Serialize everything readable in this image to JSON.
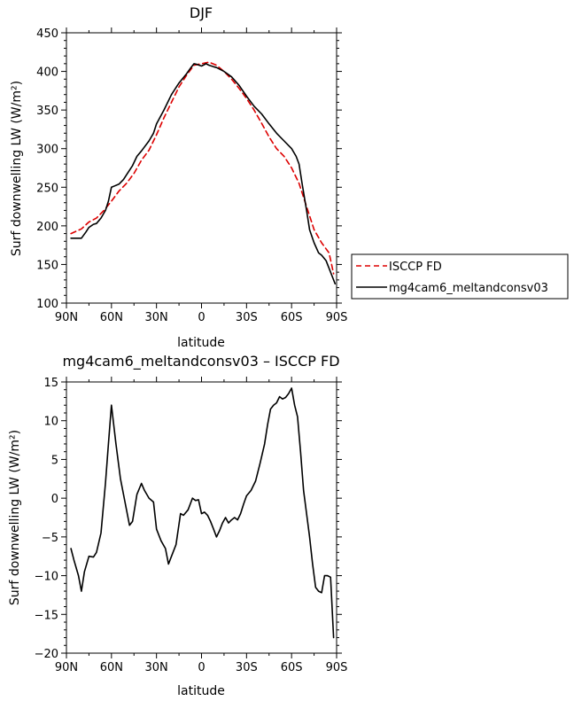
{
  "chart_data": [
    {
      "type": "line",
      "title": "DJF",
      "xlabel": "latitude",
      "ylabel": "Surf downwelling LW (W/m²)",
      "xlim": [
        -90,
        90
      ],
      "ylim": [
        100,
        450
      ],
      "x_ticks": [
        -90,
        -60,
        -30,
        0,
        30,
        60,
        90
      ],
      "x_tick_labels": [
        "90N",
        "60N",
        "30N",
        "0",
        "30S",
        "60S",
        "90S"
      ],
      "y_ticks": [
        100,
        150,
        200,
        250,
        300,
        350,
        400,
        450
      ],
      "y_tick_labels": [
        "100",
        "150",
        "200",
        "250",
        "300",
        "350",
        "400",
        "450"
      ],
      "legend": {
        "placement": "outside-right"
      },
      "series": [
        {
          "name": "ISCCP FD",
          "color": "#dd0000",
          "style": "dashed",
          "x": [
            -87,
            -80,
            -75,
            -70,
            -65,
            -60,
            -55,
            -50,
            -45,
            -40,
            -35,
            -30,
            -25,
            -20,
            -15,
            -10,
            -5,
            0,
            5,
            10,
            15,
            20,
            25,
            30,
            35,
            40,
            45,
            50,
            55,
            60,
            65,
            70,
            75,
            80,
            85,
            88
          ],
          "y": [
            190,
            196,
            205,
            210,
            220,
            232,
            245,
            255,
            268,
            285,
            298,
            318,
            340,
            360,
            380,
            395,
            408,
            410,
            412,
            408,
            400,
            390,
            378,
            365,
            350,
            333,
            315,
            300,
            290,
            275,
            255,
            225,
            195,
            178,
            165,
            138
          ]
        },
        {
          "name": "mg4cam6_meltandconsv03",
          "color": "#000000",
          "style": "solid",
          "x": [
            -87,
            -80,
            -77,
            -75,
            -72,
            -70,
            -67,
            -64,
            -62,
            -60,
            -55,
            -52,
            -50,
            -46,
            -43,
            -40,
            -35,
            -32,
            -30,
            -25,
            -20,
            -15,
            -10,
            -7,
            -5,
            -3,
            0,
            3,
            5,
            8,
            10,
            15,
            20,
            25,
            30,
            35,
            40,
            45,
            50,
            55,
            60,
            63,
            65,
            67,
            70,
            72,
            75,
            78,
            80,
            83,
            85,
            87,
            89
          ],
          "y": [
            184,
            184,
            192,
            198,
            202,
            203,
            210,
            220,
            232,
            250,
            254,
            260,
            266,
            278,
            290,
            297,
            310,
            320,
            332,
            350,
            370,
            385,
            397,
            405,
            410,
            409,
            407,
            410,
            408,
            406,
            405,
            400,
            393,
            382,
            368,
            355,
            345,
            332,
            320,
            310,
            300,
            290,
            280,
            255,
            220,
            195,
            178,
            165,
            162,
            155,
            145,
            135,
            125
          ]
        }
      ]
    },
    {
      "type": "line",
      "title": "mg4cam6_meltandconsv03 – ISCCP FD",
      "xlabel": "latitude",
      "ylabel": "Surf downwelling LW (W/m²)",
      "xlim": [
        -90,
        90
      ],
      "ylim": [
        -20,
        15
      ],
      "x_ticks": [
        -90,
        -60,
        -30,
        0,
        30,
        60,
        90
      ],
      "x_tick_labels": [
        "90N",
        "60N",
        "30N",
        "0",
        "30S",
        "60S",
        "90S"
      ],
      "y_ticks": [
        -20,
        -15,
        -10,
        -5,
        0,
        5,
        10,
        15
      ],
      "y_tick_labels": [
        "−20",
        "−15",
        "−10",
        "−5",
        "0",
        "5",
        "10",
        "15"
      ],
      "series": [
        {
          "color": "#000000",
          "style": "solid",
          "x": [
            -87,
            -85,
            -82,
            -80,
            -78,
            -75,
            -72,
            -70,
            -67,
            -64,
            -62,
            -60,
            -57,
            -54,
            -51,
            -48,
            -46,
            -43,
            -40,
            -38,
            -35,
            -32,
            -30,
            -27,
            -24,
            -22,
            -20,
            -17,
            -14,
            -12,
            -9,
            -6,
            -4,
            -2,
            0,
            2,
            4,
            6,
            8,
            10,
            12,
            14,
            16,
            18,
            20,
            22,
            24,
            26,
            28,
            30,
            33,
            36,
            39,
            42,
            44,
            46,
            48,
            50,
            52,
            54,
            56,
            58,
            60,
            62,
            64,
            66,
            68,
            70,
            72,
            74,
            76,
            78,
            80,
            82,
            84,
            86,
            88
          ],
          "y": [
            -6.5,
            -8,
            -10,
            -12,
            -9.5,
            -7.5,
            -7.6,
            -7,
            -4.5,
            2,
            7,
            12,
            7,
            2.5,
            -0.5,
            -3.5,
            -3,
            0.5,
            1.9,
            1,
            0,
            -0.5,
            -4,
            -5.5,
            -6.5,
            -8.5,
            -7.5,
            -6,
            -2,
            -2.2,
            -1.5,
            0,
            -0.3,
            -0.2,
            -2,
            -1.8,
            -2.2,
            -3,
            -4,
            -5,
            -4.2,
            -3.2,
            -2.5,
            -3.2,
            -2.8,
            -2.5,
            -2.8,
            -2,
            -0.8,
            0.3,
            1,
            2.2,
            4.5,
            7,
            9.5,
            11.5,
            12,
            12.3,
            13.1,
            12.8,
            13,
            13.5,
            14.2,
            12,
            10.5,
            6,
            1,
            -2,
            -5,
            -8.5,
            -11.5,
            -12,
            -12.2,
            -10,
            -10,
            -10.2,
            -18
          ]
        }
      ]
    }
  ]
}
